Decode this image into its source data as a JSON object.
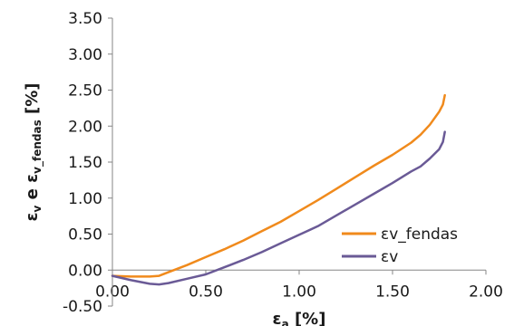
{
  "chart_data": {
    "type": "line",
    "xlabel": "εa [%]",
    "xlabel_main": "ε",
    "xlabel_sub": "a",
    "xlabel_unit": " [%]",
    "ylabel": "εv e εv_fendas [%]",
    "ylabel_main1": "ε",
    "ylabel_sub1": "v",
    "ylabel_mid": " e ε",
    "ylabel_sub2": "v_fendas",
    "ylabel_unit": " [%]",
    "xlim": [
      0,
      2
    ],
    "ylim": [
      -0.5,
      3.5
    ],
    "x_ticks": [
      "0.00",
      "0.50",
      "1.00",
      "1.50",
      "2.00"
    ],
    "x_tick_values": [
      0,
      0.5,
      1,
      1.5,
      2
    ],
    "y_ticks": [
      "-0.50",
      "0.00",
      "0.50",
      "1.00",
      "1.50",
      "2.00",
      "2.50",
      "3.00",
      "3.50"
    ],
    "y_tick_values": [
      -0.5,
      0,
      0.5,
      1,
      1.5,
      2,
      2.5,
      3,
      3.5
    ],
    "grid": false,
    "legend_position": "right",
    "series": [
      {
        "name": "εv_fendas",
        "color": "#f08a1c",
        "points": [
          [
            0.0,
            -0.08
          ],
          [
            0.1,
            -0.09
          ],
          [
            0.2,
            -0.09
          ],
          [
            0.25,
            -0.08
          ],
          [
            0.3,
            -0.03
          ],
          [
            0.4,
            0.07
          ],
          [
            0.5,
            0.18
          ],
          [
            0.6,
            0.29
          ],
          [
            0.7,
            0.41
          ],
          [
            0.8,
            0.54
          ],
          [
            0.9,
            0.67
          ],
          [
            1.0,
            0.82
          ],
          [
            1.1,
            0.97
          ],
          [
            1.2,
            1.13
          ],
          [
            1.3,
            1.29
          ],
          [
            1.4,
            1.45
          ],
          [
            1.5,
            1.6
          ],
          [
            1.6,
            1.77
          ],
          [
            1.65,
            1.88
          ],
          [
            1.7,
            2.02
          ],
          [
            1.75,
            2.2
          ],
          [
            1.77,
            2.3
          ],
          [
            1.78,
            2.43
          ]
        ]
      },
      {
        "name": "εv",
        "color": "#6a5a96",
        "points": [
          [
            0.0,
            -0.08
          ],
          [
            0.1,
            -0.14
          ],
          [
            0.2,
            -0.19
          ],
          [
            0.25,
            -0.2
          ],
          [
            0.3,
            -0.18
          ],
          [
            0.4,
            -0.12
          ],
          [
            0.5,
            -0.06
          ],
          [
            0.6,
            0.04
          ],
          [
            0.7,
            0.14
          ],
          [
            0.8,
            0.25
          ],
          [
            0.9,
            0.37
          ],
          [
            1.0,
            0.49
          ],
          [
            1.1,
            0.61
          ],
          [
            1.2,
            0.76
          ],
          [
            1.3,
            0.91
          ],
          [
            1.4,
            1.06
          ],
          [
            1.5,
            1.21
          ],
          [
            1.6,
            1.37
          ],
          [
            1.65,
            1.44
          ],
          [
            1.7,
            1.55
          ],
          [
            1.75,
            1.68
          ],
          [
            1.77,
            1.78
          ],
          [
            1.78,
            1.92
          ]
        ]
      }
    ]
  }
}
